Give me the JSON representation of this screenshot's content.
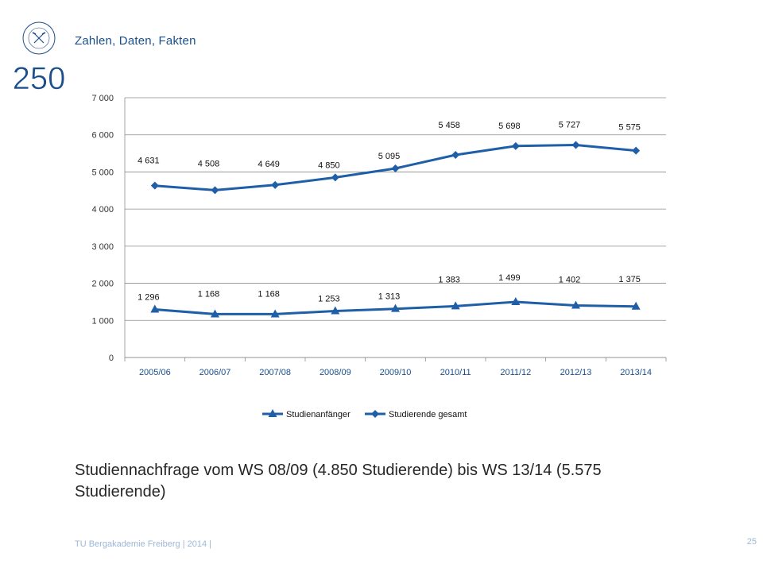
{
  "header": {
    "section_title": "Zahlen, Daten, Fakten",
    "logo_number": "250",
    "logo_ring_text": "TU BERGAKADEMIE FREIBERG"
  },
  "chart_data": {
    "type": "line",
    "categories": [
      "2005/06",
      "2006/07",
      "2007/08",
      "2008/09",
      "2009/10",
      "2010/11",
      "2011/12",
      "2012/13",
      "2013/14"
    ],
    "ylim": [
      0,
      7000
    ],
    "yticks": [
      0,
      1000,
      2000,
      3000,
      4000,
      5000,
      6000,
      7000
    ],
    "ytick_labels": [
      "0",
      "1 000",
      "2 000",
      "3 000",
      "4 000",
      "5 000",
      "6 000",
      "7 000"
    ],
    "grid": true,
    "legend_position": "bottom",
    "series": [
      {
        "name": "Studienanfänger",
        "marker": "triangle",
        "color": "#1f5fa8",
        "values": [
          1296,
          1168,
          1168,
          1253,
          1313,
          1383,
          1499,
          1402,
          1375
        ],
        "labels": [
          "1 296",
          "1 168",
          "1 168",
          "1 253",
          "1 313",
          "1 383",
          "1 499",
          "1 402",
          "1 375"
        ]
      },
      {
        "name": "Studierende gesamt",
        "marker": "diamond",
        "color": "#1f5fa8",
        "values": [
          4631,
          4508,
          4649,
          4850,
          5095,
          5458,
          5698,
          5727,
          5575
        ],
        "labels": [
          "4 631",
          "4 508",
          "4 649",
          "4 850",
          "5 095",
          "5 458",
          "5 698",
          "5 727",
          "5 575"
        ]
      }
    ]
  },
  "caption": "Studiennachfrage vom WS 08/09 (4.850 Studierende) bis WS 13/14 (5.575 Studierende)",
  "footer": {
    "text": "TU Bergakademie Freiberg | 2014 |",
    "page_number": "25"
  }
}
